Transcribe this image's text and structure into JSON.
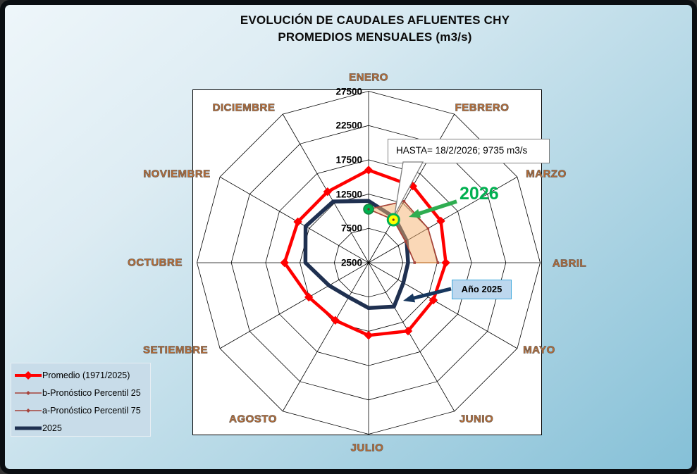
{
  "title": {
    "line1": "EVOLUCIÓN DE CAUDALES AFLUENTES CHY",
    "line2": "PROMEDIOS MENSUALES (m3/s)"
  },
  "axis": {
    "min": 2500,
    "max": 27500,
    "step": 5000,
    "tick_labels": [
      "2500",
      "7500",
      "12500",
      "17500",
      "22500",
      "27500"
    ]
  },
  "chart_data": {
    "type": "radar",
    "categories": [
      "ENERO",
      "FEBRERO",
      "MARZO",
      "ABRIL",
      "MAYO",
      "JUNIO",
      "JULIO",
      "AGOSTO",
      "SETIEMBRE",
      "OCTUBRE",
      "NOVIEMBRE",
      "DICIEMBRE"
    ],
    "axis_range": [
      2500,
      27500
    ],
    "grid": "polygon-rings-every-5000",
    "series": [
      {
        "name": "Promedio (1971/2025)",
        "color": "#ff0000",
        "style": "thick-diamond-markers",
        "closed": true,
        "values": [
          16000,
          15400,
          14650,
          13750,
          13400,
          14000,
          13100,
          12200,
          12550,
          14750,
          14400,
          14450
        ]
      },
      {
        "name": "b-Pronóstico Percentil 25",
        "color": "#a6433b",
        "style": "thin-small-markers",
        "closed": false,
        "values": [
          10300,
          9735,
          8700,
          9200
        ]
      },
      {
        "name": "a-Pronóstico Percentil 75",
        "color": "#a6433b",
        "style": "thin-small-markers",
        "closed": false,
        "values": [
          10300,
          12840,
          12500,
          12600
        ]
      },
      {
        "name": "2025",
        "color": "#1f3050",
        "style": "thick-no-markers",
        "closed": true,
        "values": [
          11500,
          10100,
          8900,
          8250,
          8350,
          9900,
          9100,
          8300,
          9150,
          11700,
          13100,
          12800
        ]
      }
    ],
    "forecast_band": {
      "fill": "#f5b170",
      "opacity": 0.5,
      "edge": "#c98648",
      "between": [
        "a-Pronóstico Percentil 75",
        "b-Pronóstico Percentil 25"
      ],
      "months_span": [
        "ENERO",
        "ABRIL"
      ]
    },
    "point_markers": [
      {
        "name": "obs-2026-enero",
        "month_index": 0,
        "value": 10300,
        "shape": "green-dot",
        "fill": "#00b050",
        "stroke": "#15803a"
      },
      {
        "name": "obs-2026-febrero",
        "month_index": 1,
        "value": 9735,
        "shape": "yellow-circle",
        "fill": "#ffff00",
        "stroke": "#00b050"
      }
    ]
  },
  "annotations": {
    "hasta_text": "HASTA= 18/2/2026; 9735 m3/s",
    "year_2026_label": "2026",
    "year_2026_color": "#00b050",
    "green_arrow_color": "#2fad51",
    "ano_2025_label": "Año 2025",
    "ano_2025_box_fill": "#bdd7ee",
    "navy_arrow_color": "#17375e"
  },
  "colors": {
    "month_labels": "#c46e2f",
    "plot_background": "#ffffff",
    "page_gradient_start": "#eef6fa",
    "page_gradient_end": "#85c0d7",
    "grid_lines": "#000000"
  }
}
